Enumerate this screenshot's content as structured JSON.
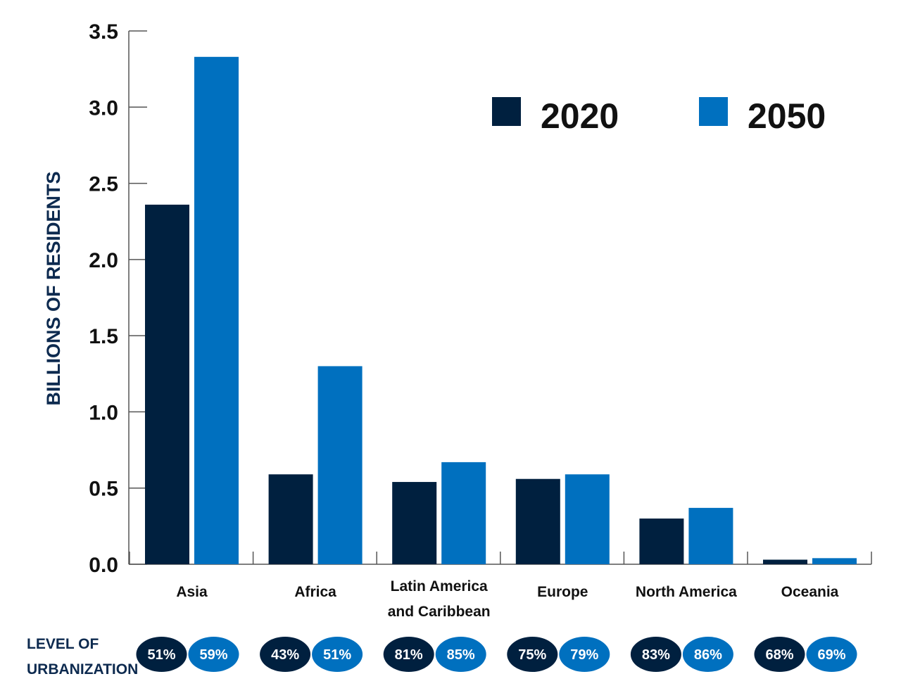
{
  "chart_data": {
    "type": "bar",
    "categories": [
      "Asia",
      "Africa",
      "Latin America and Caribbean",
      "Europe",
      "North America",
      "Oceania"
    ],
    "category_lines": [
      [
        "Asia"
      ],
      [
        "Africa"
      ],
      [
        "Latin America",
        "and Caribbean"
      ],
      [
        "Europe"
      ],
      [
        "North America"
      ],
      [
        "Oceania"
      ]
    ],
    "series": [
      {
        "name": "2020",
        "color": "#00203f",
        "values": [
          2.36,
          0.59,
          0.54,
          0.56,
          0.3,
          0.03
        ]
      },
      {
        "name": "2050",
        "color": "#0070bf",
        "values": [
          3.33,
          1.3,
          0.67,
          0.59,
          0.37,
          0.04
        ]
      }
    ],
    "ylabel": "BILLIONS OF RESIDENTS",
    "xlabel": "",
    "ylim": [
      0,
      3.5
    ],
    "yticks": [
      "0.0",
      "0.5",
      "1.0",
      "1.5",
      "2.0",
      "2.5",
      "3.0",
      "3.5"
    ],
    "legend_position": "top-right",
    "grid": false
  },
  "urbanization": {
    "title_lines": [
      "LEVEL OF",
      "URBANIZATION"
    ],
    "values_2020": [
      "51%",
      "43%",
      "81%",
      "75%",
      "83%",
      "68%"
    ],
    "values_2050": [
      "59%",
      "51%",
      "85%",
      "79%",
      "86%",
      "69%"
    ]
  }
}
